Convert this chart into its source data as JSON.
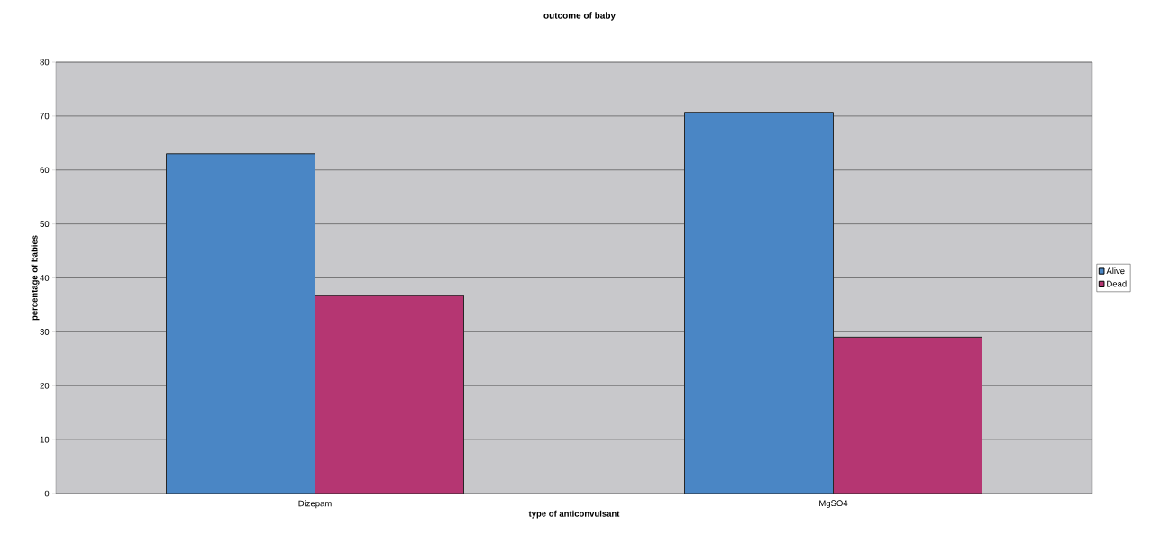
{
  "chart_data": {
    "type": "bar",
    "title": "outcome of baby",
    "xlabel": "type of anticonvulsant",
    "ylabel": "percentage of babies",
    "categories": [
      "Dizepam",
      "MgSO4"
    ],
    "series": [
      {
        "name": "Alive",
        "color": "#4a86c5",
        "values": [
          63,
          70.7
        ]
      },
      {
        "name": "Dead",
        "color": "#b53672",
        "values": [
          36.7,
          29
        ]
      }
    ],
    "ylim": [
      0,
      80
    ],
    "yticks": [
      0,
      10,
      20,
      30,
      40,
      50,
      60,
      70,
      80
    ],
    "grid": "y",
    "legend": "right"
  }
}
